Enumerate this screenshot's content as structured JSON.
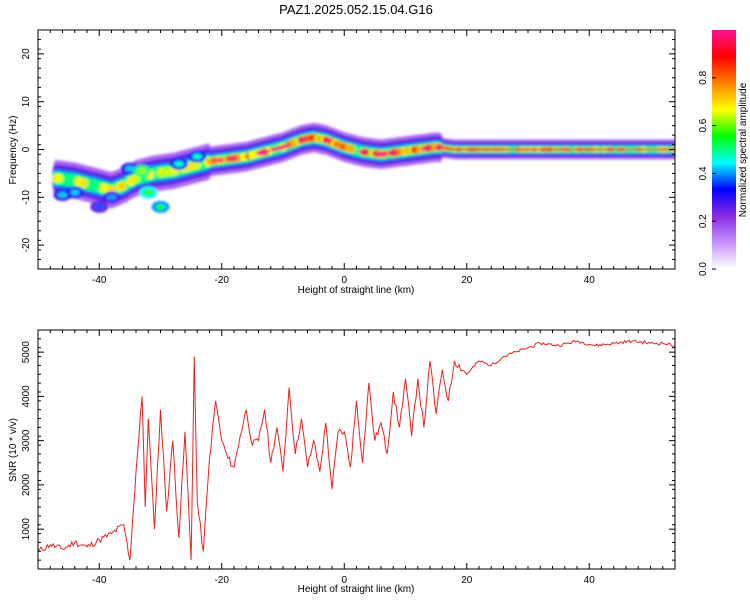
{
  "figure": {
    "title": "PAZ1.2025.052.15.04.G16"
  },
  "colors": {
    "snr_line": "#e8231f",
    "axis": "#000000",
    "background": "#ffffff"
  },
  "chart_data": [
    {
      "type": "heatmap",
      "title": "",
      "xlabel": "Height of straight line (km)",
      "ylabel": "Frequency (Hz)",
      "xlim": [
        -50,
        54
      ],
      "ylim": [
        -25,
        25
      ],
      "x_ticks": [
        -40,
        -20,
        0,
        20,
        40
      ],
      "y_ticks": [
        -20,
        -10,
        0,
        10,
        20
      ],
      "colorbar": {
        "label": "Normalized spectral amplitude",
        "range": [
          0,
          1
        ],
        "ticks": [
          "0.0",
          "0.2",
          "0.4",
          "0.6",
          "0.8"
        ],
        "colormap": [
          "#ffffff",
          "#c792ff",
          "#8a2be2",
          "#0000ff",
          "#00ffff",
          "#00ff00",
          "#ffff00",
          "#ff8000",
          "#ff0000",
          "#ff1493"
        ]
      },
      "ridge": {
        "x": [
          -47,
          -44,
          -41,
          -38,
          -36,
          -34,
          -31,
          -28,
          -25,
          -22,
          -19,
          -16,
          -13,
          -10,
          -7,
          -5,
          -3,
          0,
          3,
          6,
          9,
          12,
          15,
          18,
          25,
          35,
          45,
          54
        ],
        "y": [
          -6,
          -6.5,
          -7.5,
          -8.5,
          -7.5,
          -6,
          -5,
          -4.5,
          -3.5,
          -2.5,
          -2,
          -1.5,
          -0.5,
          0.5,
          2,
          2.5,
          2,
          0.5,
          -0.5,
          -1,
          -0.5,
          0,
          0.5,
          0,
          0,
          0,
          0,
          0
        ]
      }
    },
    {
      "type": "line",
      "title": "",
      "xlabel": "Height of straight line (km)",
      "ylabel": "SNR (10 * v/v)",
      "xlim": [
        -50,
        54
      ],
      "ylim": [
        100,
        5500
      ],
      "x_ticks": [
        -40,
        -20,
        0,
        20,
        40
      ],
      "y_ticks": [
        1000,
        2000,
        3000,
        4000,
        5000
      ],
      "series": [
        {
          "color": "#e8231f",
          "x": [
            -50,
            -48,
            -46,
            -44,
            -42,
            -40,
            -38,
            -36,
            -35,
            -34,
            -33,
            -32.5,
            -32,
            -31,
            -30,
            -29,
            -28,
            -27,
            -26,
            -25,
            -24.5,
            -24,
            -23,
            -22,
            -21,
            -20,
            -19,
            -18,
            -17,
            -16,
            -15,
            -14,
            -13,
            -12,
            -11,
            -10,
            -9,
            -8,
            -7,
            -6,
            -5,
            -4,
            -3,
            -2,
            -1,
            0,
            1,
            2,
            3,
            4,
            5,
            6,
            7,
            8,
            9,
            10,
            11,
            12,
            13,
            14,
            15,
            16,
            17,
            18,
            20,
            22,
            24,
            26,
            28,
            30,
            32,
            35,
            38,
            41,
            44,
            47,
            50,
            52,
            54
          ],
          "y": [
            500,
            650,
            550,
            700,
            600,
            750,
            900,
            1100,
            300,
            2300,
            4000,
            1500,
            3500,
            1000,
            3700,
            1400,
            3000,
            800,
            3200,
            300,
            4900,
            1600,
            500,
            2600,
            3900,
            3000,
            2600,
            2400,
            3100,
            3700,
            2900,
            3000,
            3700,
            2500,
            3300,
            2300,
            4200,
            2700,
            3500,
            2400,
            3000,
            2300,
            3400,
            1900,
            3200,
            3200,
            2400,
            3900,
            2500,
            4300,
            3000,
            3400,
            2700,
            4100,
            3300,
            4400,
            3100,
            4400,
            3300,
            4800,
            3600,
            4600,
            3900,
            4800,
            4500,
            4800,
            4700,
            4900,
            5000,
            5100,
            5200,
            5150,
            5250,
            5150,
            5200,
            5250,
            5200,
            5200,
            5150
          ]
        }
      ]
    }
  ]
}
